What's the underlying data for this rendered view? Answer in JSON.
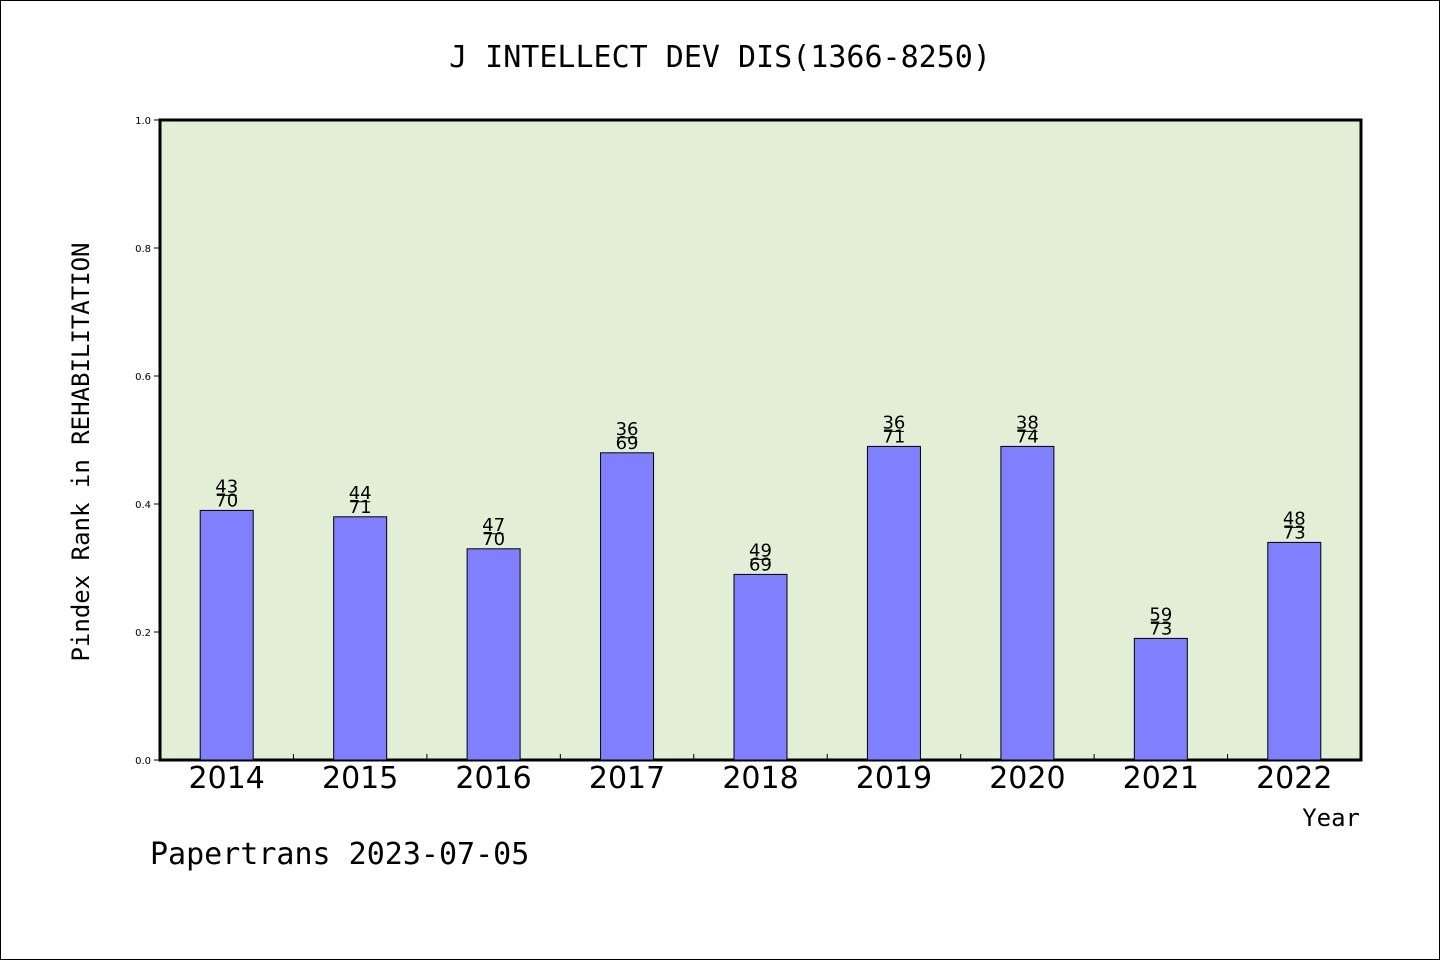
{
  "chart_data": {
    "type": "bar",
    "title": "J INTELLECT DEV DIS(1366-8250)",
    "xlabel": "Year",
    "ylabel": "Pindex Rank in REHABILITATION",
    "ylim": [
      0,
      1.0
    ],
    "yticks": [
      "0.0",
      "0.2",
      "0.4",
      "0.6",
      "0.8",
      "1.0"
    ],
    "categories": [
      "2014",
      "2015",
      "2016",
      "2017",
      "2018",
      "2019",
      "2020",
      "2021",
      "2022"
    ],
    "values": [
      0.39,
      0.38,
      0.33,
      0.48,
      0.29,
      0.49,
      0.49,
      0.19,
      0.34
    ],
    "rank": [
      "43",
      "44",
      "47",
      "36",
      "49",
      "36",
      "38",
      "59",
      "48"
    ],
    "total": [
      "70",
      "71",
      "70",
      "69",
      "69",
      "71",
      "74",
      "73",
      "73"
    ],
    "grid": false,
    "legend": "none",
    "colors": {
      "plot_background": "#e2efd6",
      "bar_fill": "#8080ff",
      "bar_stroke": "#000000"
    }
  },
  "footer": "Papertrans 2023-07-05"
}
